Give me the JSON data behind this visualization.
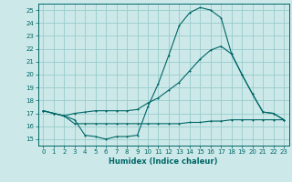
{
  "xlabel": "Humidex (Indice chaleur)",
  "background_color": "#cce8e8",
  "grid_color": "#99cccc",
  "line_color": "#006666",
  "xlim": [
    -0.5,
    23.5
  ],
  "ylim": [
    14.5,
    25.5
  ],
  "yticks": [
    15,
    16,
    17,
    18,
    19,
    20,
    21,
    22,
    23,
    24,
    25
  ],
  "xticks": [
    0,
    1,
    2,
    3,
    4,
    5,
    6,
    7,
    8,
    9,
    10,
    11,
    12,
    13,
    14,
    15,
    16,
    17,
    18,
    19,
    20,
    21,
    22,
    23
  ],
  "line1_x": [
    0,
    1,
    2,
    3,
    4,
    5,
    6,
    7,
    8,
    9,
    10,
    11,
    12,
    13,
    14,
    15,
    16,
    17,
    18,
    19,
    20,
    21,
    22,
    23
  ],
  "line1_y": [
    17.2,
    17.0,
    16.8,
    16.5,
    15.3,
    15.2,
    15.0,
    15.2,
    15.2,
    15.3,
    17.5,
    19.3,
    21.5,
    23.8,
    24.8,
    25.2,
    25.0,
    24.4,
    21.6,
    20.0,
    18.5,
    17.1,
    17.0,
    16.5
  ],
  "line2_x": [
    0,
    1,
    2,
    3,
    4,
    5,
    6,
    7,
    8,
    9,
    10,
    11,
    12,
    13,
    14,
    15,
    16,
    17,
    18,
    19,
    20,
    21,
    22,
    23
  ],
  "line2_y": [
    17.2,
    17.0,
    16.8,
    17.0,
    17.1,
    17.2,
    17.2,
    17.2,
    17.2,
    17.3,
    17.8,
    18.2,
    18.8,
    19.4,
    20.3,
    21.2,
    21.9,
    22.2,
    21.6,
    20.0,
    18.5,
    17.1,
    17.0,
    16.5
  ],
  "line3_x": [
    0,
    1,
    2,
    3,
    4,
    5,
    6,
    7,
    8,
    9,
    10,
    11,
    12,
    13,
    14,
    15,
    16,
    17,
    18,
    19,
    20,
    21,
    22,
    23
  ],
  "line3_y": [
    17.2,
    17.0,
    16.8,
    16.2,
    16.2,
    16.2,
    16.2,
    16.2,
    16.2,
    16.2,
    16.2,
    16.2,
    16.2,
    16.2,
    16.3,
    16.3,
    16.4,
    16.4,
    16.5,
    16.5,
    16.5,
    16.5,
    16.5,
    16.5
  ]
}
